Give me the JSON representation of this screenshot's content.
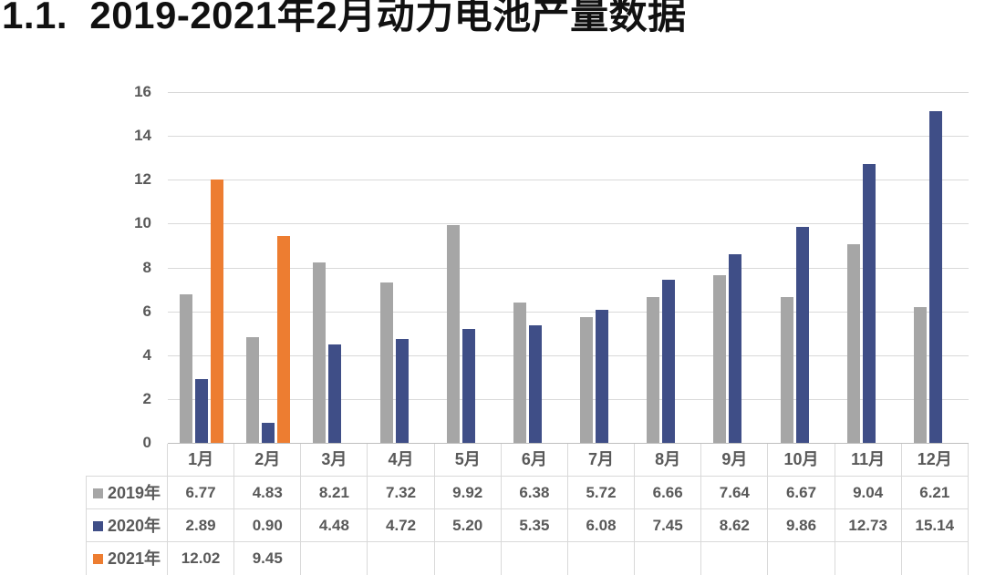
{
  "heading": "1.1.  2019-2021年2月动力电池产量数据",
  "chart_data": {
    "type": "bar",
    "title": "1.1.  2019-2021年2月动力电池产量数据",
    "categories": [
      "1月",
      "2月",
      "3月",
      "4月",
      "5月",
      "6月",
      "7月",
      "8月",
      "9月",
      "10月",
      "11月",
      "12月"
    ],
    "series": [
      {
        "name": "2019年",
        "color": "#A6A6A6",
        "values": [
          6.77,
          4.83,
          8.21,
          7.32,
          9.92,
          6.38,
          5.72,
          6.66,
          7.64,
          6.67,
          9.04,
          6.21
        ]
      },
      {
        "name": "2020年",
        "color": "#3F4E87",
        "values": [
          2.89,
          0.9,
          4.48,
          4.72,
          5.2,
          5.35,
          6.08,
          7.45,
          8.62,
          9.86,
          12.73,
          15.14
        ]
      },
      {
        "name": "2021年",
        "color": "#ED7D31",
        "values": [
          12.02,
          9.45,
          null,
          null,
          null,
          null,
          null,
          null,
          null,
          null,
          null,
          null
        ]
      }
    ],
    "ylim": [
      0,
      16
    ],
    "yticks": [
      0,
      2,
      4,
      6,
      8,
      10,
      12,
      14,
      16
    ],
    "grid": "horizontal",
    "legend_position": "data-table-left",
    "value_format": "0.00"
  },
  "colors": {
    "gridline": "#D9D9D9",
    "axis_line": "#BFBFBF",
    "text": "#595959",
    "table_border": "#D9D9D9"
  }
}
